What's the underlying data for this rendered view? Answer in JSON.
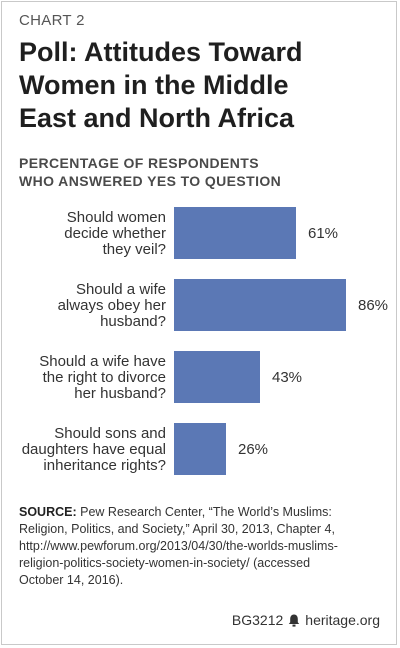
{
  "header": {
    "kicker": "CHART 2",
    "title_lines": [
      "Poll: Attitudes Toward",
      "Women in the Middle",
      "East and North Africa"
    ]
  },
  "subtitle_lines": [
    "PERCENTAGE OF RESPONDENTS",
    "WHO ANSWERED YES TO QUESTION"
  ],
  "chart_data": {
    "type": "bar",
    "orientation": "horizontal",
    "categories": [
      [
        "Should women",
        "decide whether",
        "they veil?"
      ],
      [
        "Should a wife",
        "always obey her",
        "husband?"
      ],
      [
        "Should a wife have",
        "the right to divorce",
        "her husband?"
      ],
      [
        "Should sons and",
        "daughters have equal",
        "inheritance rights?"
      ]
    ],
    "values": [
      61,
      86,
      43,
      26
    ],
    "value_labels": [
      "61%",
      "86%",
      "43%",
      "26%"
    ],
    "xlim": [
      0,
      100
    ],
    "grid": false,
    "bar_color": "#5b78b5"
  },
  "source": {
    "label": "SOURCE:",
    "lines": [
      "Pew Research Center, “The World’s Muslims:",
      "Religion, Politics, and Society,” April 30, 2013, Chapter 4,",
      "http://www.pewforum.org/2013/04/30/the-worlds-muslims-",
      "religion-politics-society-women-in-society/ (accessed",
      "October 14, 2016)."
    ]
  },
  "footer": {
    "code": "BG3212",
    "site": "heritage.org",
    "icon": "bell-icon"
  }
}
